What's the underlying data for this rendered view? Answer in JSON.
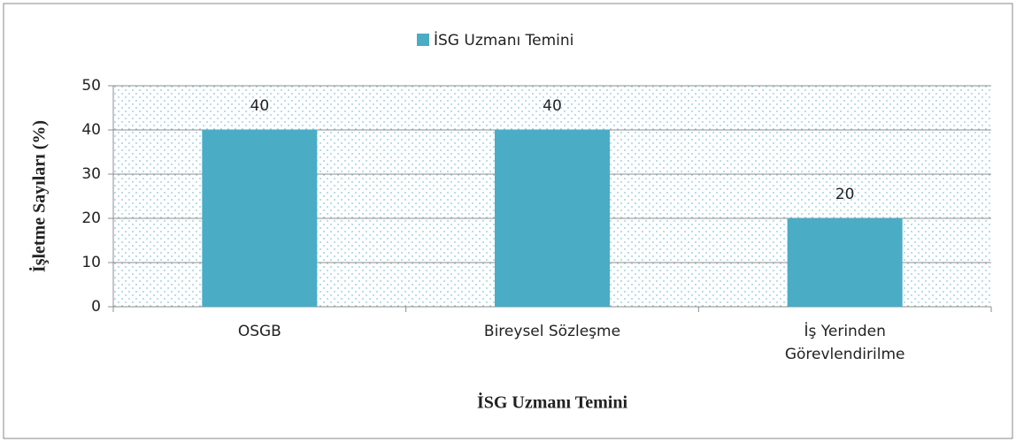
{
  "chart_data": {
    "type": "bar",
    "legend_label": "İSG Uzmanı Temini",
    "x_label": "İSG Uzmanı Temini",
    "y_label": "İşletme Sayıları (%)",
    "categories": [
      "OSGB",
      "Bireysel Sözleşme",
      "İş Yerinden Görevlendirilme"
    ],
    "values": [
      40,
      40,
      20
    ],
    "color": "#4bacc6",
    "ylim": [
      0,
      50
    ],
    "yticks": [
      0,
      10,
      20,
      30,
      40,
      50
    ],
    "grid": true,
    "legend": "top"
  }
}
